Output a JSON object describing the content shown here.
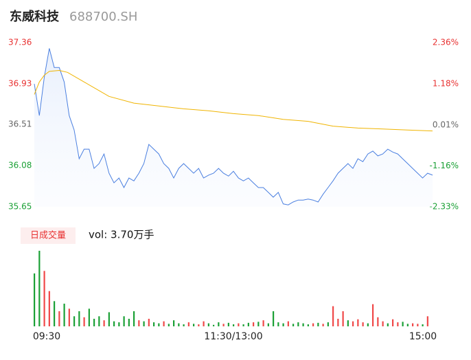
{
  "header": {
    "title": "东威科技",
    "code": "688700.SH"
  },
  "chart_data": [
    {
      "type": "line",
      "xlim": [
        0,
        240
      ],
      "ylim": [
        35.65,
        37.36
      ],
      "yticks": [
        35.65,
        36.08,
        36.51,
        36.93,
        37.36
      ],
      "ytick_colors": [
        "#1aa035",
        "#1aa035",
        "#666666",
        "#e83232",
        "#e83232"
      ],
      "y2lim": [
        -2.33,
        2.36
      ],
      "y2ticks": [
        {
          "value": -2.33,
          "label": "-2.33%"
        },
        {
          "value": -1.16,
          "label": "-1.16%"
        },
        {
          "value": 0.01,
          "label": "0.01%"
        },
        {
          "value": 1.18,
          "label": "1.18%"
        },
        {
          "value": 2.36,
          "label": "2.36%"
        }
      ],
      "y2tick_colors": [
        "#1aa035",
        "#1aa035",
        "#666666",
        "#e83232",
        "#e83232"
      ],
      "series": [
        {
          "color": "#4a7fe0",
          "area": true,
          "x": [
            0,
            3,
            6,
            9,
            12,
            15,
            18,
            21,
            24,
            27,
            30,
            33,
            36,
            39,
            42,
            45,
            48,
            51,
            54,
            57,
            60,
            63,
            66,
            69,
            72,
            75,
            78,
            81,
            84,
            87,
            90,
            93,
            96,
            99,
            102,
            105,
            108,
            111,
            114,
            117,
            120,
            123,
            126,
            129,
            132,
            135,
            138,
            141,
            144,
            147,
            150,
            153,
            156,
            159,
            162,
            165,
            168,
            171,
            174,
            177,
            180,
            183,
            186,
            189,
            192,
            195,
            198,
            201,
            204,
            207,
            210,
            213,
            216,
            219,
            222,
            225,
            228,
            231,
            234,
            237,
            240
          ],
          "values": [
            36.93,
            36.6,
            37.0,
            37.3,
            37.1,
            37.1,
            36.95,
            36.6,
            36.45,
            36.15,
            36.25,
            36.25,
            36.05,
            36.1,
            36.2,
            36.0,
            35.9,
            35.95,
            35.85,
            35.95,
            35.92,
            36.0,
            36.1,
            36.3,
            36.25,
            36.2,
            36.1,
            36.05,
            35.95,
            36.05,
            36.1,
            36.05,
            36.0,
            36.05,
            35.95,
            35.98,
            36.0,
            36.05,
            36.0,
            35.97,
            36.02,
            35.95,
            35.92,
            35.95,
            35.9,
            35.85,
            35.85,
            35.8,
            35.75,
            35.8,
            35.68,
            35.67,
            35.7,
            35.72,
            35.72,
            35.73,
            35.72,
            35.7,
            35.78,
            35.85,
            35.92,
            36.0,
            36.05,
            36.1,
            36.05,
            36.15,
            36.12,
            36.2,
            36.23,
            36.18,
            36.2,
            36.25,
            36.22,
            36.2,
            36.15,
            36.1,
            36.05,
            36.0,
            35.95,
            36.0,
            35.98
          ]
        },
        {
          "color": "#f0b400",
          "area": false,
          "x": [
            0,
            3,
            6,
            9,
            15,
            20,
            30,
            45,
            60,
            75,
            90,
            105,
            120,
            135,
            150,
            165,
            180,
            195,
            210,
            225,
            240
          ],
          "values": [
            36.82,
            36.95,
            37.02,
            37.06,
            37.07,
            37.05,
            36.95,
            36.8,
            36.73,
            36.7,
            36.67,
            36.65,
            36.62,
            36.6,
            36.56,
            36.54,
            36.49,
            36.47,
            36.46,
            36.45,
            36.44
          ]
        }
      ]
    },
    {
      "type": "bar",
      "title": "日成交量",
      "annotation": "vol: 3.70万手",
      "xlim": [
        0,
        240
      ],
      "ylim": [
        0,
        1500
      ],
      "xticks": [
        {
          "value": 0,
          "label": "09:30"
        },
        {
          "value": 120,
          "label": "11:30/13:00"
        },
        {
          "value": 240,
          "label": "15:00"
        }
      ],
      "up_color": "#f04848",
      "down_color": "#1aa035",
      "x": [
        0,
        3,
        6,
        9,
        12,
        15,
        18,
        21,
        24,
        27,
        30,
        33,
        36,
        39,
        42,
        45,
        48,
        51,
        54,
        57,
        60,
        63,
        66,
        69,
        72,
        75,
        78,
        81,
        84,
        87,
        90,
        93,
        96,
        99,
        102,
        105,
        108,
        111,
        114,
        117,
        120,
        123,
        126,
        129,
        132,
        135,
        138,
        141,
        144,
        147,
        150,
        153,
        156,
        159,
        162,
        165,
        168,
        171,
        174,
        177,
        180,
        183,
        186,
        189,
        192,
        195,
        198,
        201,
        204,
        207,
        210,
        213,
        216,
        219,
        222,
        225,
        228,
        231,
        234,
        237
      ],
      "values": [
        1050,
        1500,
        1100,
        700,
        500,
        300,
        450,
        350,
        200,
        300,
        180,
        350,
        150,
        200,
        120,
        280,
        100,
        80,
        200,
        150,
        300,
        120,
        100,
        150,
        80,
        60,
        100,
        50,
        120,
        60,
        40,
        80,
        50,
        40,
        100,
        60,
        30,
        80,
        50,
        70,
        40,
        60,
        40,
        70,
        80,
        90,
        120,
        60,
        300,
        80,
        60,
        100,
        50,
        80,
        60,
        40,
        60,
        70,
        50,
        80,
        400,
        150,
        300,
        120,
        100,
        140,
        80,
        60,
        440,
        180,
        100,
        60,
        140,
        80,
        90,
        50,
        60,
        50,
        40,
        200
      ],
      "direction": [
        "down",
        "down",
        "up",
        "up",
        "down",
        "up",
        "down",
        "up",
        "down",
        "down",
        "up",
        "down",
        "down",
        "down",
        "up",
        "down",
        "down",
        "down",
        "down",
        "down",
        "down",
        "up",
        "down",
        "up",
        "down",
        "down",
        "up",
        "down",
        "down",
        "down",
        "down",
        "up",
        "down",
        "up",
        "up",
        "down",
        "down",
        "down",
        "up",
        "down",
        "down",
        "up",
        "down",
        "down",
        "up",
        "down",
        "up",
        "down",
        "down",
        "down",
        "down",
        "up",
        "down",
        "down",
        "down",
        "down",
        "up",
        "down",
        "up",
        "down",
        "up",
        "up",
        "up",
        "down",
        "up",
        "up",
        "up",
        "down",
        "up",
        "up",
        "up",
        "down",
        "up",
        "up",
        "down",
        "down",
        "up",
        "up",
        "down",
        "up"
      ]
    }
  ]
}
